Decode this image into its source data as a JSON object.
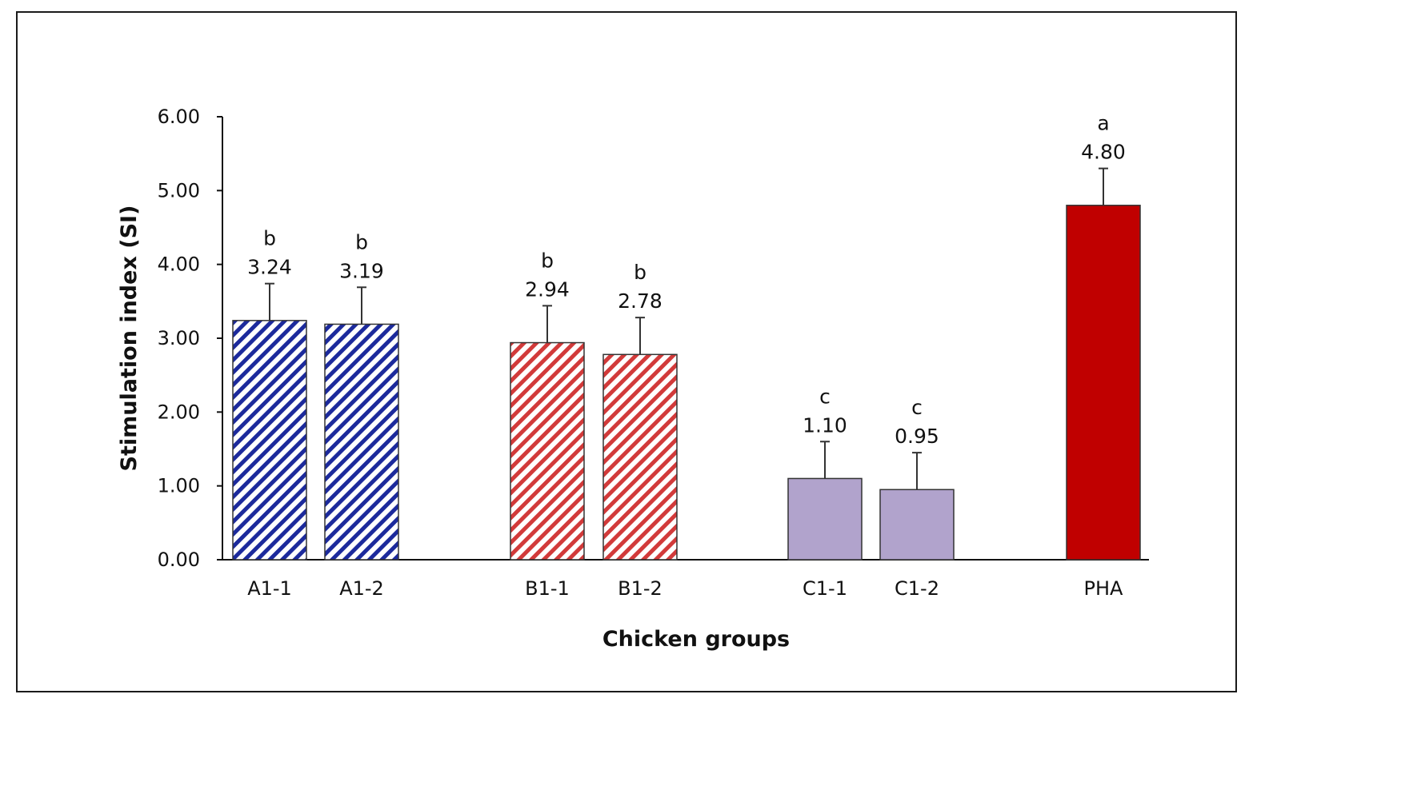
{
  "chart_data": {
    "type": "bar",
    "title": "",
    "xlabel": "Chicken groups",
    "ylabel": "Stimulation index (SI)",
    "ylim": [
      0,
      6
    ],
    "yticks": [
      "0.00",
      "1.00",
      "2.00",
      "3.00",
      "4.00",
      "5.00",
      "6.00"
    ],
    "categories": [
      "A1-1",
      "A1-2",
      "B1-1",
      "B1-2",
      "C1-1",
      "C1-2",
      "PHA"
    ],
    "values": [
      3.24,
      3.19,
      2.94,
      2.78,
      1.1,
      0.95,
      4.8
    ],
    "value_labels": [
      "3.24",
      "3.19",
      "2.94",
      "2.78",
      "1.10",
      "0.95",
      "4.80"
    ],
    "error_plus": [
      0.5,
      0.5,
      0.5,
      0.5,
      0.5,
      0.5,
      0.5
    ],
    "significance": [
      "b",
      "b",
      "b",
      "b",
      "c",
      "c",
      "a"
    ],
    "bar_styles": [
      {
        "fill": "hatch",
        "color": "#1c2a9c"
      },
      {
        "fill": "hatch",
        "color": "#1c2a9c"
      },
      {
        "fill": "hatch",
        "color": "#d23a3a"
      },
      {
        "fill": "hatch",
        "color": "#d23a3a"
      },
      {
        "fill": "solid",
        "color": "#b1a3cc"
      },
      {
        "fill": "solid",
        "color": "#b1a3cc"
      },
      {
        "fill": "solid",
        "color": "#c00000"
      }
    ],
    "grid": false,
    "legend": "none"
  }
}
